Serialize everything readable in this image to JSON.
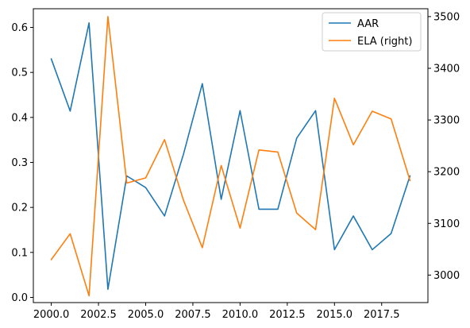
{
  "chart_data": {
    "type": "line",
    "title": "",
    "xlabel": "",
    "ylabel": "",
    "ylabel_right": "",
    "x": [
      2000,
      2001,
      2002,
      2003,
      2004,
      2005,
      2006,
      2007,
      2008,
      2009,
      2010,
      2011,
      2012,
      2013,
      2014,
      2015,
      2016,
      2017,
      2018,
      2019
    ],
    "xlim": [
      1999.05,
      2019.95
    ],
    "ylim_left": [
      -0.0115,
      0.6415
    ],
    "ylim_right": [
      2946.8,
      3515.2
    ],
    "x_ticks": [
      2000,
      2002.5,
      2005,
      2007.5,
      2010,
      2012.5,
      2015,
      2017.5
    ],
    "x_tick_labels": [
      "2000.0",
      "2002.5",
      "2005.0",
      "2007.5",
      "2010.0",
      "2012.5",
      "2015.0",
      "2017.5"
    ],
    "y_left_ticks": [
      0.0,
      0.1,
      0.2,
      0.3,
      0.4,
      0.5,
      0.6
    ],
    "y_left_tick_labels": [
      "0.0",
      "0.1",
      "0.2",
      "0.3",
      "0.4",
      "0.5",
      "0.6"
    ],
    "y_right_ticks": [
      3000,
      3100,
      3200,
      3300,
      3400,
      3500
    ],
    "y_right_tick_labels": [
      "3000",
      "3100",
      "3200",
      "3300",
      "3400",
      "3500"
    ],
    "grid": false,
    "legend_position": "top-right",
    "series": [
      {
        "name": "AAR",
        "axis": "left",
        "color": "#1f77b4",
        "values": [
          0.53,
          0.414,
          0.61,
          0.018,
          0.27,
          0.244,
          0.181,
          0.318,
          0.475,
          0.218,
          0.415,
          0.196,
          0.196,
          0.354,
          0.415,
          0.106,
          0.181,
          0.106,
          0.142,
          0.27
        ]
      },
      {
        "name": "ELA (right)",
        "axis": "right",
        "color": "#ff7f0e",
        "values": [
          3030,
          3080,
          2960,
          3500,
          3178,
          3188,
          3262,
          3145,
          3053,
          3212,
          3091,
          3242,
          3238,
          3120,
          3088,
          3342,
          3252,
          3317,
          3302,
          3183
        ]
      }
    ]
  }
}
